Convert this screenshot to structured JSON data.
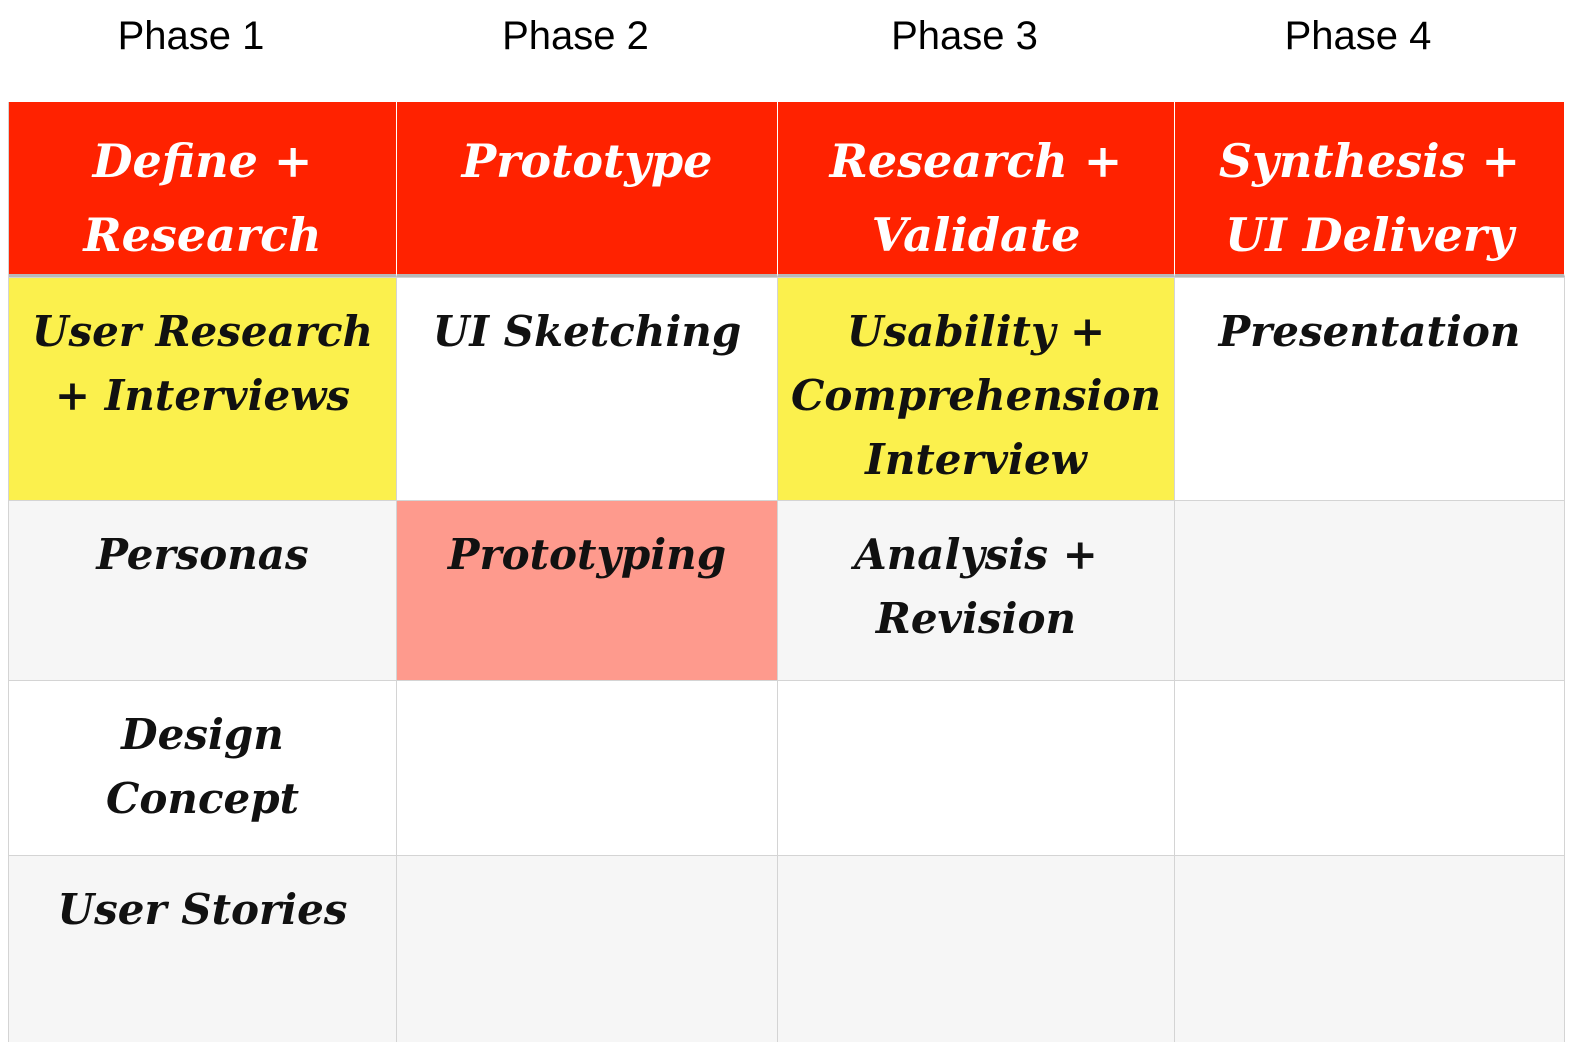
{
  "phases": [
    "Phase 1",
    "Phase 2",
    "Phase 3",
    "Phase 4"
  ],
  "columns": [
    {
      "header": "Define +\nResearch",
      "cells": [
        "User Research\n+ Interviews",
        "Personas",
        "Design\nConcept",
        "User Stories"
      ]
    },
    {
      "header": "Prototype",
      "cells": [
        "UI Sketching",
        "Prototyping",
        "",
        ""
      ]
    },
    {
      "header": "Research +\nValidate",
      "cells": [
        "Usability +\nComprehension\nInterview",
        "Analysis +\nRevision",
        "",
        ""
      ]
    },
    {
      "header": "Synthesis +\nUI Delivery",
      "cells": [
        "Presentation",
        "",
        "",
        ""
      ]
    }
  ],
  "colors": {
    "header_bg": "#ff2200",
    "header_text": "#ffffff",
    "highlight_yellow": "#fbf04d",
    "highlight_pink": "#fe9a8d",
    "row_gray": "#f6f6f6",
    "row_white": "#ffffff"
  }
}
